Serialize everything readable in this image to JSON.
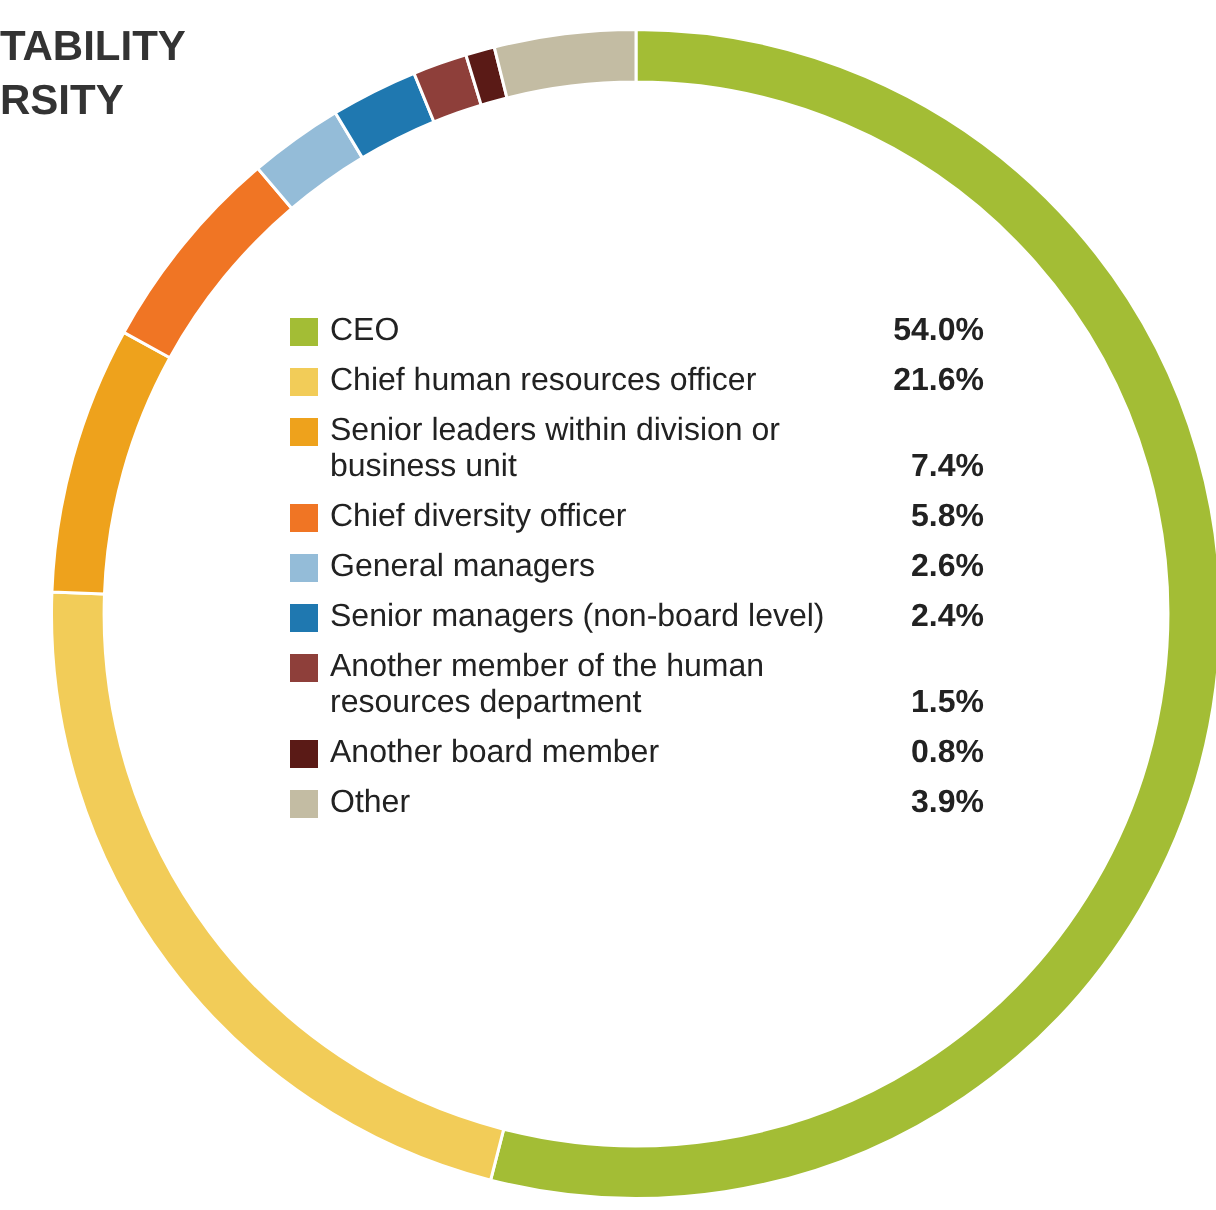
{
  "chart_data": {
    "type": "donut",
    "title": "TABILITY\nRSITY",
    "categories": [
      "CEO",
      "Chief human resources officer",
      "Senior leaders within division or business unit",
      "Chief diversity officer",
      "General managers",
      "Senior managers (non-board level)",
      "Another member of the human resources department",
      "Another board member",
      "Other"
    ],
    "values": [
      54.0,
      21.6,
      7.4,
      5.8,
      2.6,
      2.4,
      1.5,
      0.8,
      3.9
    ],
    "value_labels": [
      "54.0%",
      "21.6%",
      "7.4%",
      "5.8%",
      "2.6%",
      "2.4%",
      "1.5%",
      "0.8%",
      "3.9%"
    ],
    "colors": [
      "#a3bd35",
      "#f2cc58",
      "#eea21c",
      "#f07524",
      "#94bcd8",
      "#1f78b0",
      "#8e3f3a",
      "#5a1a16",
      "#c3bca3"
    ],
    "legend": "center"
  }
}
